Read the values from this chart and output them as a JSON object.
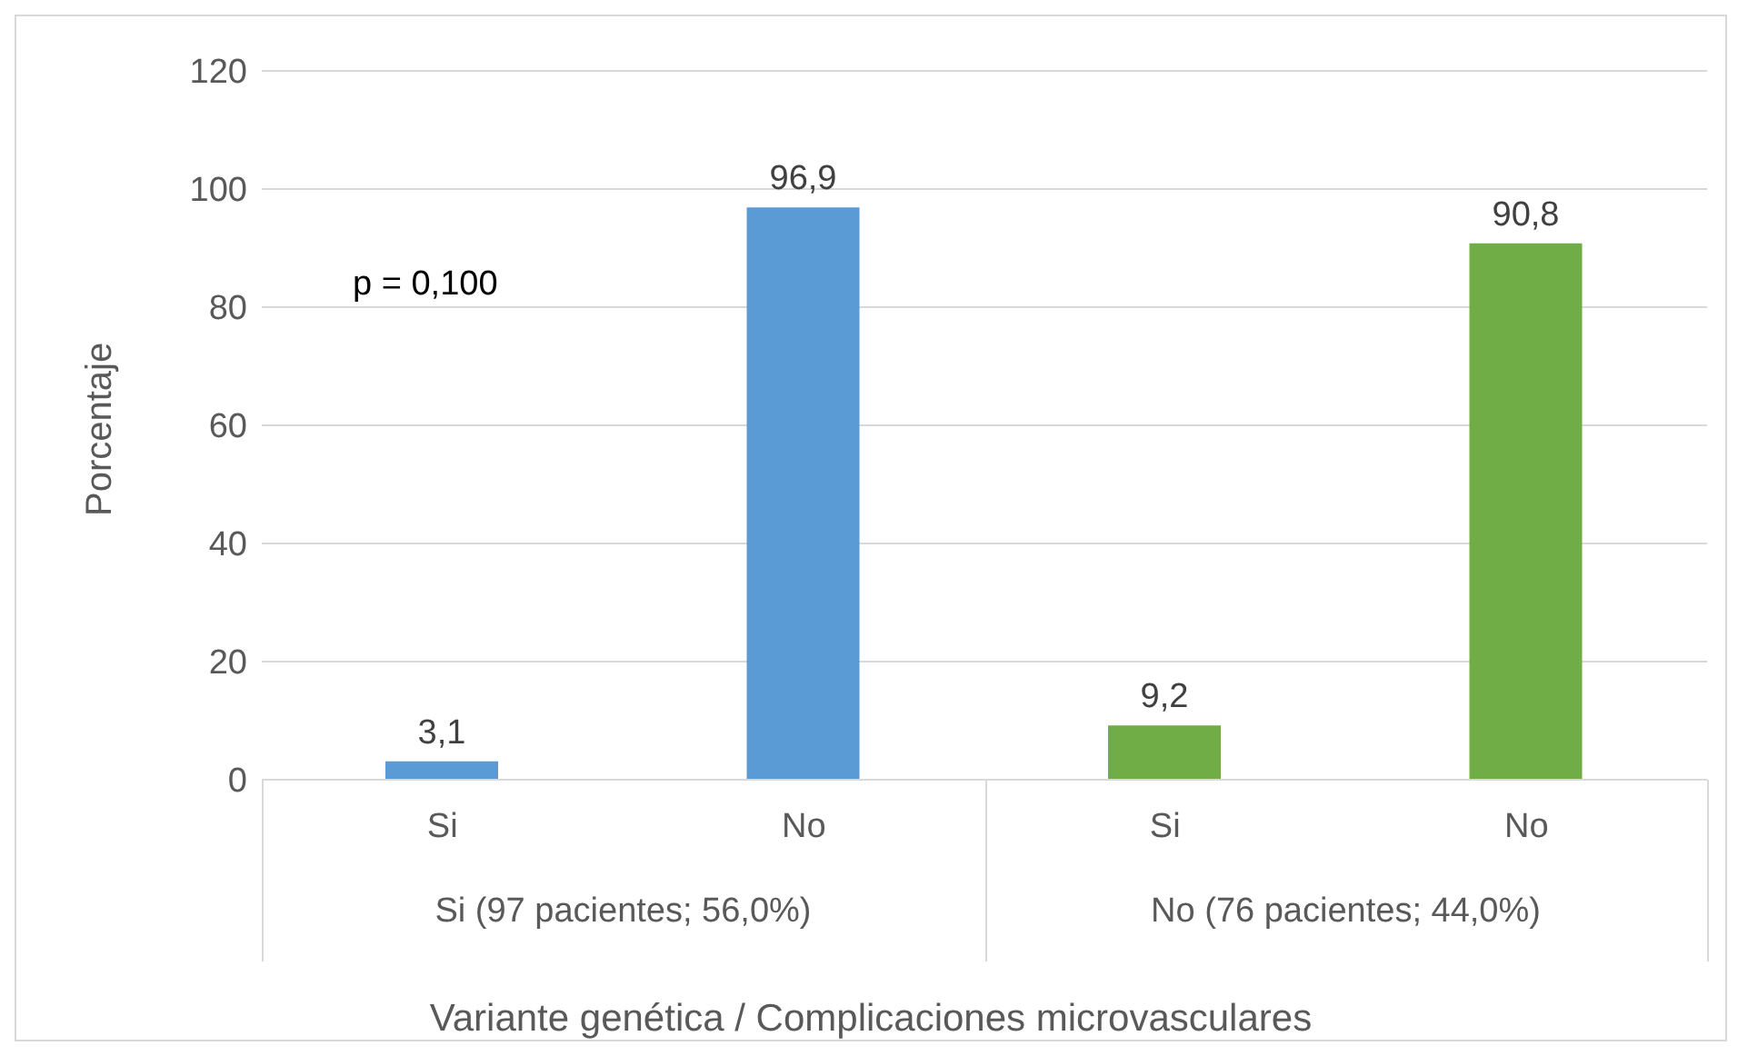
{
  "chart_data": {
    "type": "bar",
    "xlabel": "Variante genética / Complicaciones microvasculares",
    "ylabel": "Porcentaje",
    "categories": [
      "Si",
      "No",
      "Si",
      "No"
    ],
    "values": [
      3.1,
      96.9,
      9.2,
      90.8
    ],
    "colors": [
      "#5b9bd5",
      "#5b9bd5",
      "#70ad47",
      "#70ad47"
    ],
    "value_labels": [
      "3,1",
      "96,9",
      "9,2",
      "90,8"
    ],
    "ylim": [
      0,
      120
    ],
    "yticks": [
      0,
      20,
      40,
      60,
      80,
      100,
      120
    ],
    "grid": "y",
    "legend": false,
    "annotations": [
      "p = 0,100",
      "Si (97 pacientes; 56,0%)",
      "No (76 pacientes; 44,0%)"
    ]
  }
}
